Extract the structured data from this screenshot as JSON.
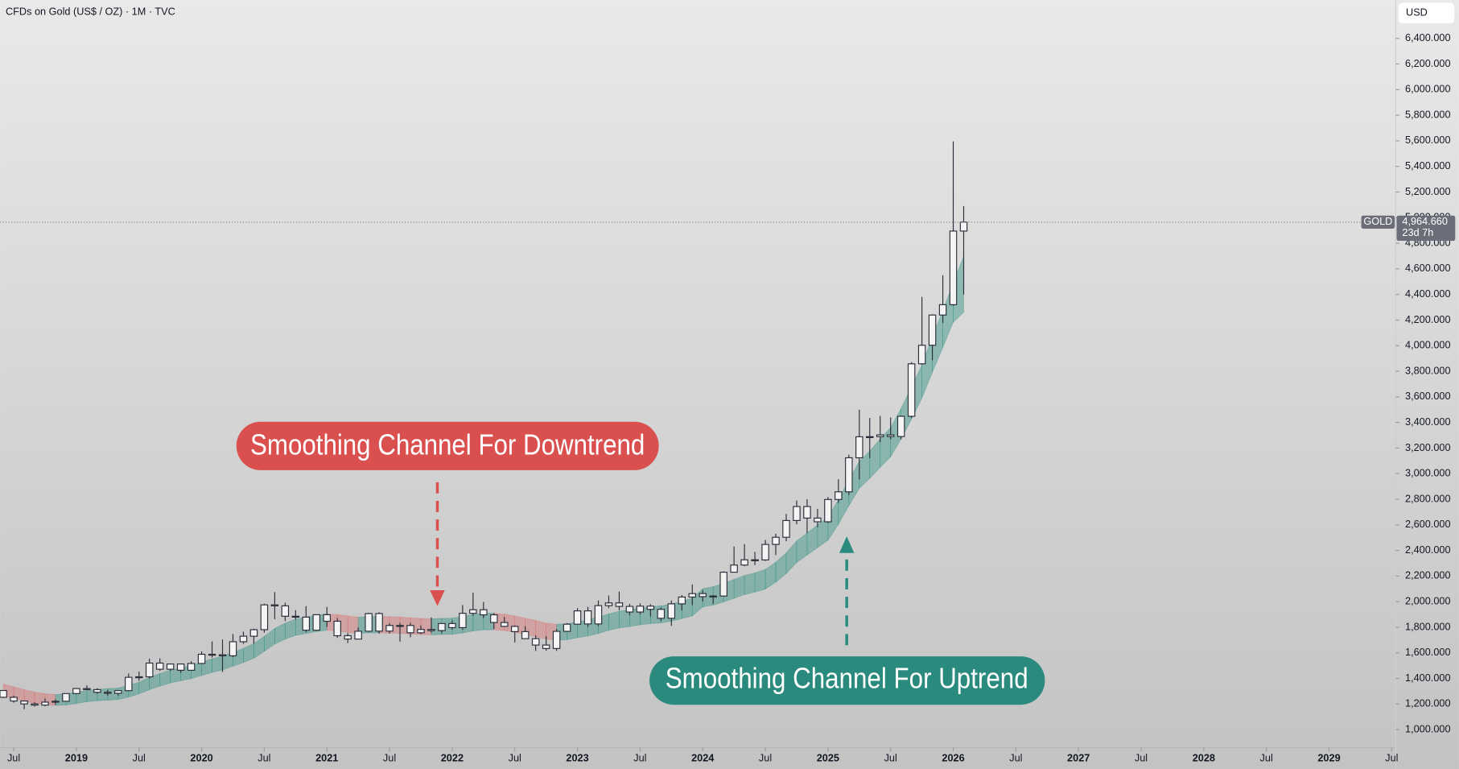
{
  "chart_data": {
    "type": "candlestick",
    "title": "CFDs on Gold (US$ / OZ) · 1M · TVC",
    "currency": "USD",
    "symbol_tag": "GOLD",
    "last_price": {
      "value": 4964.66,
      "label": "4,964.660"
    },
    "countdown": "23d 7h",
    "up_color": "#f4f4f4",
    "down_color": "#f4f4f4",
    "wick_color": "#2a2e39",
    "x": [
      "2018-06",
      "2018-07",
      "2018-08",
      "2018-09",
      "2018-10",
      "2018-11",
      "2018-12",
      "2019-01",
      "2019-02",
      "2019-03",
      "2019-04",
      "2019-05",
      "2019-06",
      "2019-07",
      "2019-08",
      "2019-09",
      "2019-10",
      "2019-11",
      "2019-12",
      "2020-01",
      "2020-02",
      "2020-03",
      "2020-04",
      "2020-05",
      "2020-06",
      "2020-07",
      "2020-08",
      "2020-09",
      "2020-10",
      "2020-11",
      "2020-12",
      "2021-01",
      "2021-02",
      "2021-03",
      "2021-04",
      "2021-05",
      "2021-06",
      "2021-07",
      "2021-08",
      "2021-09",
      "2021-10",
      "2021-11",
      "2021-12",
      "2022-01",
      "2022-02",
      "2022-03",
      "2022-04",
      "2022-05",
      "2022-06",
      "2022-07",
      "2022-08",
      "2022-09",
      "2022-10",
      "2022-11",
      "2022-12",
      "2023-01",
      "2023-02",
      "2023-03",
      "2023-04",
      "2023-05",
      "2023-06",
      "2023-07",
      "2023-08",
      "2023-09",
      "2023-10",
      "2023-11",
      "2023-12",
      "2024-01",
      "2024-02",
      "2024-03",
      "2024-04",
      "2024-05",
      "2024-06",
      "2024-07",
      "2024-08",
      "2024-09",
      "2024-10",
      "2024-11",
      "2024-12",
      "2025-01",
      "2025-02",
      "2025-03",
      "2025-04",
      "2025-05",
      "2025-06",
      "2025-07",
      "2025-08",
      "2025-09",
      "2025-10",
      "2025-11",
      "2025-12",
      "2026-01",
      "2026-02"
    ],
    "open": [
      1306,
      1253,
      1224,
      1201,
      1192,
      1215,
      1222,
      1282,
      1321,
      1313,
      1292,
      1284,
      1305,
      1409,
      1413,
      1520,
      1472,
      1513,
      1464,
      1517,
      1589,
      1585,
      1577,
      1687,
      1730,
      1781,
      1975,
      1967,
      1886,
      1879,
      1777,
      1898,
      1847,
      1734,
      1708,
      1769,
      1907,
      1770,
      1814,
      1814,
      1757,
      1783,
      1774,
      1829,
      1797,
      1909,
      1937,
      1897,
      1837,
      1807,
      1766,
      1711,
      1661,
      1634,
      1768,
      1824,
      1928,
      1826,
      1969,
      1990,
      1963,
      1919,
      1965,
      1940,
      1870,
      1983,
      2036,
      2063,
      2039,
      2044,
      2230,
      2286,
      2327,
      2326,
      2447,
      2503,
      2634,
      2743,
      2653,
      2624,
      2798,
      2858,
      3124,
      3288,
      3289,
      3303,
      3290,
      3448,
      3858,
      4003,
      4239,
      4320,
      4895
    ],
    "high": [
      1309,
      1266,
      1228,
      1214,
      1243,
      1237,
      1284,
      1326,
      1347,
      1324,
      1310,
      1306,
      1439,
      1453,
      1555,
      1557,
      1517,
      1516,
      1535,
      1611,
      1689,
      1704,
      1747,
      1765,
      1789,
      1984,
      2075,
      1992,
      1933,
      1965,
      1900,
      1959,
      1872,
      1755,
      1798,
      1913,
      1917,
      1832,
      1834,
      1834,
      1814,
      1877,
      1831,
      1853,
      1974,
      2070,
      1998,
      1910,
      1880,
      1814,
      1808,
      1735,
      1730,
      1786,
      1833,
      1949,
      1959,
      2009,
      2048,
      2079,
      1983,
      1987,
      1980,
      1953,
      2009,
      2052,
      2135,
      2088,
      2052,
      2236,
      2431,
      2450,
      2388,
      2483,
      2531,
      2685,
      2790,
      2801,
      2726,
      2817,
      2956,
      3148,
      3500,
      3435,
      3451,
      3439,
      3453,
      3871,
      4381,
      4245,
      4550,
      5595,
      5090
    ],
    "low": [
      1247,
      1211,
      1160,
      1180,
      1183,
      1196,
      1221,
      1276,
      1311,
      1281,
      1266,
      1266,
      1301,
      1382,
      1400,
      1459,
      1459,
      1445,
      1459,
      1517,
      1563,
      1451,
      1567,
      1670,
      1671,
      1757,
      1863,
      1848,
      1860,
      1764,
      1775,
      1802,
      1717,
      1677,
      1705,
      1766,
      1750,
      1751,
      1688,
      1722,
      1746,
      1759,
      1753,
      1781,
      1781,
      1890,
      1872,
      1787,
      1805,
      1681,
      1709,
      1615,
      1617,
      1616,
      1765,
      1823,
      1804,
      1810,
      1949,
      1932,
      1893,
      1902,
      1884,
      1848,
      1810,
      1931,
      1973,
      2001,
      1984,
      2039,
      2228,
      2277,
      2286,
      2318,
      2364,
      2472,
      2604,
      2536,
      2583,
      2614,
      2772,
      2832,
      2956,
      3120,
      3247,
      3268,
      3268,
      3436,
      3850,
      3886,
      4177,
      4310,
      4400
    ],
    "close": [
      1253,
      1224,
      1201,
      1192,
      1215,
      1222,
      1282,
      1321,
      1313,
      1292,
      1284,
      1305,
      1409,
      1413,
      1520,
      1472,
      1513,
      1464,
      1517,
      1589,
      1585,
      1577,
      1687,
      1730,
      1781,
      1975,
      1967,
      1886,
      1879,
      1777,
      1898,
      1847,
      1734,
      1708,
      1769,
      1907,
      1770,
      1814,
      1814,
      1757,
      1783,
      1774,
      1829,
      1797,
      1909,
      1937,
      1897,
      1837,
      1807,
      1766,
      1711,
      1661,
      1634,
      1768,
      1824,
      1928,
      1826,
      1969,
      1990,
      1963,
      1919,
      1965,
      1940,
      1870,
      1983,
      2036,
      2063,
      2039,
      2044,
      2230,
      2286,
      2327,
      2326,
      2447,
      2503,
      2634,
      2743,
      2653,
      2624,
      2798,
      2858,
      3124,
      3288,
      3289,
      3303,
      3290,
      3448,
      3858,
      4003,
      4239,
      4320,
      4895,
      4965
    ],
    "channel": {
      "rising_color": "rgba(38,140,124,0.42)",
      "falling_color": "rgba(222,96,96,0.38)",
      "upper": [
        1356,
        1335,
        1312,
        1294,
        1281,
        1275,
        1279,
        1292,
        1306,
        1314,
        1320,
        1325,
        1346,
        1371,
        1408,
        1439,
        1465,
        1482,
        1501,
        1527,
        1553,
        1573,
        1604,
        1635,
        1672,
        1728,
        1791,
        1832,
        1863,
        1879,
        1894,
        1904,
        1899,
        1889,
        1879,
        1884,
        1884,
        1882,
        1880,
        1873,
        1869,
        1867,
        1869,
        1871,
        1884,
        1899,
        1910,
        1910,
        1902,
        1889,
        1871,
        1853,
        1832,
        1824,
        1827,
        1842,
        1858,
        1879,
        1904,
        1925,
        1938,
        1951,
        1961,
        1967,
        1982,
        2003,
        2027,
        2101,
        2117,
        2142,
        2174,
        2205,
        2225,
        2251,
        2308,
        2381,
        2474,
        2536,
        2598,
        2660,
        2795,
        2950,
        3095,
        3177,
        3271,
        3359,
        3509,
        3674,
        3850,
        4068,
        4275,
        4487,
        4700
      ],
      "lower": [
        1264,
        1245,
        1224,
        1206,
        1195,
        1189,
        1193,
        1204,
        1218,
        1226,
        1230,
        1235,
        1254,
        1279,
        1312,
        1341,
        1365,
        1382,
        1399,
        1423,
        1447,
        1467,
        1496,
        1525,
        1558,
        1612,
        1669,
        1708,
        1737,
        1751,
        1766,
        1776,
        1771,
        1761,
        1751,
        1756,
        1756,
        1754,
        1752,
        1747,
        1743,
        1741,
        1743,
        1745,
        1756,
        1771,
        1780,
        1780,
        1774,
        1761,
        1745,
        1727,
        1708,
        1700,
        1703,
        1718,
        1732,
        1751,
        1776,
        1795,
        1806,
        1819,
        1829,
        1833,
        1848,
        1867,
        1889,
        1959,
        1973,
        1998,
        2026,
        2055,
        2075,
        2099,
        2152,
        2219,
        2306,
        2364,
        2422,
        2480,
        2605,
        2750,
        2885,
        2963,
        3049,
        3131,
        3271,
        3426,
        3590,
        3792,
        3985,
        4183,
        4260
      ]
    },
    "xlim": [
      "2018-06",
      "2029-07"
    ],
    "xticks": [
      {
        "value": "2018-07",
        "label": "Jul"
      },
      {
        "value": "2019-01",
        "label": "2019"
      },
      {
        "value": "2019-07",
        "label": "Jul"
      },
      {
        "value": "2020-01",
        "label": "2020"
      },
      {
        "value": "2020-07",
        "label": "Jul"
      },
      {
        "value": "2021-01",
        "label": "2021"
      },
      {
        "value": "2021-07",
        "label": "Jul"
      },
      {
        "value": "2022-01",
        "label": "2022"
      },
      {
        "value": "2022-07",
        "label": "Jul"
      },
      {
        "value": "2023-01",
        "label": "2023"
      },
      {
        "value": "2023-07",
        "label": "Jul"
      },
      {
        "value": "2024-01",
        "label": "2024"
      },
      {
        "value": "2024-07",
        "label": "Jul"
      },
      {
        "value": "2025-01",
        "label": "2025"
      },
      {
        "value": "2025-07",
        "label": "Jul"
      },
      {
        "value": "2026-01",
        "label": "2026"
      },
      {
        "value": "2026-07",
        "label": "Jul"
      },
      {
        "value": "2027-01",
        "label": "2027"
      },
      {
        "value": "2027-07",
        "label": "Jul"
      },
      {
        "value": "2028-01",
        "label": "2028"
      },
      {
        "value": "2028-07",
        "label": "Jul"
      },
      {
        "value": "2029-01",
        "label": "2029"
      },
      {
        "value": "2029-07",
        "label": "Jul"
      }
    ],
    "ylim": [
      860,
      6700
    ],
    "yticks": [
      {
        "value": 1000,
        "label": "1,000.000"
      },
      {
        "value": 1200,
        "label": "1,200.000"
      },
      {
        "value": 1400,
        "label": "1,400.000"
      },
      {
        "value": 1600,
        "label": "1,600.000"
      },
      {
        "value": 1800,
        "label": "1,800.000"
      },
      {
        "value": 2000,
        "label": "2,000.000"
      },
      {
        "value": 2200,
        "label": "2,200.000"
      },
      {
        "value": 2400,
        "label": "2,400.000"
      },
      {
        "value": 2600,
        "label": "2,600.000"
      },
      {
        "value": 2800,
        "label": "2,800.000"
      },
      {
        "value": 3000,
        "label": "3,000.000"
      },
      {
        "value": 3200,
        "label": "3,200.000"
      },
      {
        "value": 3400,
        "label": "3,400.000"
      },
      {
        "value": 3600,
        "label": "3,600.000"
      },
      {
        "value": 3800,
        "label": "3,800.000"
      },
      {
        "value": 4000,
        "label": "4,000.000"
      },
      {
        "value": 4200,
        "label": "4,200.000"
      },
      {
        "value": 4400,
        "label": "4,400.000"
      },
      {
        "value": 4600,
        "label": "4,600.000"
      },
      {
        "value": 4800,
        "label": "4,800.000"
      },
      {
        "value": 5000,
        "label": "5,000.000"
      },
      {
        "value": 5200,
        "label": "5,200.000"
      },
      {
        "value": 5400,
        "label": "5,400.000"
      },
      {
        "value": 5600,
        "label": "5,600.000"
      },
      {
        "value": 5800,
        "label": "5,800.000"
      },
      {
        "value": 6000,
        "label": "6,000.000"
      },
      {
        "value": 6200,
        "label": "6,200.000"
      },
      {
        "value": 6400,
        "label": "6,400.000"
      }
    ],
    "annotations": [
      {
        "text": "Smoothing Channel For Downtrend",
        "color": "#d9504f"
      },
      {
        "text": "Smoothing Channel For Uptrend",
        "color": "#2a8a7d"
      }
    ]
  }
}
